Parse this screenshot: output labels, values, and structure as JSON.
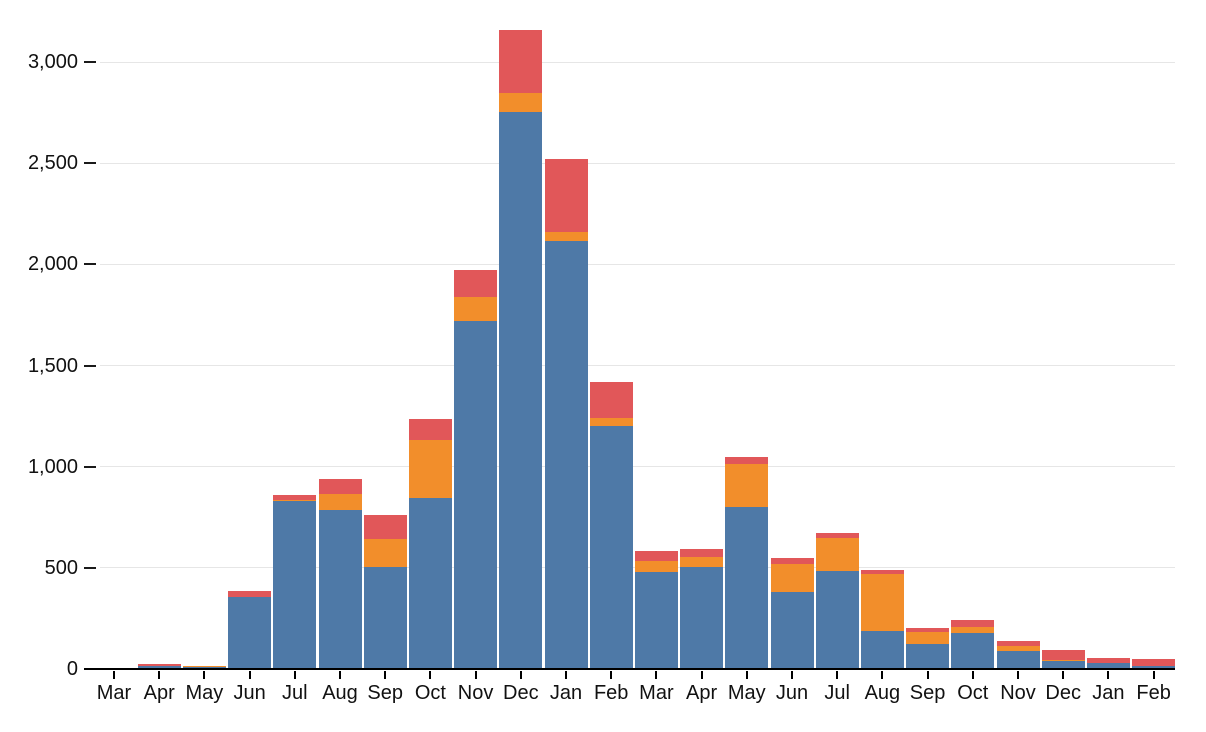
{
  "chart_data": {
    "type": "bar",
    "stacked": true,
    "title": "",
    "xlabel": "",
    "ylabel": "",
    "legend": "none",
    "grid": true,
    "ylim": [
      0,
      3200
    ],
    "yticks": [
      0,
      500,
      1000,
      1500,
      2000,
      2500,
      3000
    ],
    "ytick_labels": [
      "0",
      "500",
      "1,000",
      "1,500",
      "2,000",
      "2,500",
      "3,000"
    ],
    "categories": [
      "Mar",
      "Apr",
      "May",
      "Jun",
      "Jul",
      "Aug",
      "Sep",
      "Oct",
      "Nov",
      "Dec",
      "Jan",
      "Feb",
      "Mar",
      "Apr",
      "May",
      "Jun",
      "Jul",
      "Aug",
      "Sep",
      "Oct",
      "Nov",
      "Dec",
      "Jan",
      "Feb"
    ],
    "series": [
      {
        "name": "blue-series",
        "color": "#4e79a7",
        "values": [
          2,
          16,
          10,
          355,
          830,
          786,
          502,
          845,
          1720,
          2755,
          2115,
          1203,
          478,
          506,
          801,
          380,
          484,
          188,
          122,
          176,
          90,
          41,
          30,
          15
        ]
      },
      {
        "name": "orange-series",
        "color": "#f28e2b",
        "values": [
          0,
          1,
          3,
          2,
          4,
          80,
          139,
          289,
          119,
          90,
          44,
          36,
          54,
          49,
          212,
          137,
          165,
          280,
          59,
          33,
          24,
          3,
          1,
          2
        ]
      },
      {
        "name": "red-series",
        "color": "#e15759",
        "values": [
          5,
          8,
          3,
          30,
          26,
          75,
          121,
          101,
          131,
          315,
          360,
          178,
          53,
          40,
          35,
          31,
          25,
          21,
          23,
          33,
          26,
          50,
          24,
          33
        ]
      }
    ]
  },
  "style_colors": {
    "gridline": "#e6e6e6",
    "axis_line": "#000000",
    "tick": "#1a1a1a",
    "label_text": "#111111",
    "background": "#ffffff"
  }
}
